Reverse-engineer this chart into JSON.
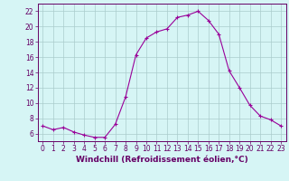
{
  "x": [
    0,
    1,
    2,
    3,
    4,
    5,
    6,
    7,
    8,
    9,
    10,
    11,
    12,
    13,
    14,
    15,
    16,
    17,
    18,
    19,
    20,
    21,
    22,
    23
  ],
  "y": [
    7.0,
    6.5,
    6.8,
    6.2,
    5.8,
    5.5,
    5.5,
    7.2,
    10.8,
    16.3,
    18.5,
    19.3,
    19.7,
    21.2,
    21.5,
    22.0,
    20.8,
    19.0,
    14.2,
    12.0,
    9.7,
    8.3,
    7.8,
    7.0
  ],
  "line_color": "#990099",
  "marker": "+",
  "marker_size": 3,
  "bg_color": "#d6f5f5",
  "grid_color": "#aacccc",
  "xlabel": "Windchill (Refroidissement éolien,°C)",
  "xlabel_fontsize": 6.5,
  "ylim": [
    5,
    23
  ],
  "xlim": [
    -0.5,
    23.5
  ],
  "yticks": [
    6,
    8,
    10,
    12,
    14,
    16,
    18,
    20,
    22
  ],
  "xticks": [
    0,
    1,
    2,
    3,
    4,
    5,
    6,
    7,
    8,
    9,
    10,
    11,
    12,
    13,
    14,
    15,
    16,
    17,
    18,
    19,
    20,
    21,
    22,
    23
  ],
  "tick_fontsize": 5.5,
  "tick_color": "#660066",
  "spine_color": "#660066",
  "label_color": "#660066"
}
